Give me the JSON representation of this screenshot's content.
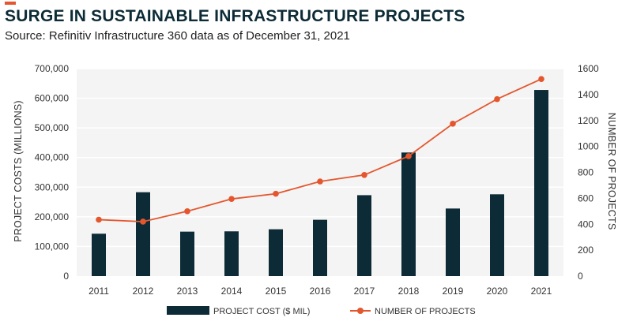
{
  "header": {
    "title": "SURGE IN SUSTAINABLE INFRASTRUCTURE PROJECTS",
    "subtitle": "Source: Refinitiv Infrastructure 360 data as of December 31, 2021"
  },
  "colors": {
    "accent": "#e4572e",
    "bar": "#0d2b36",
    "line": "#e4572e",
    "plot_background": "#f4f4f4",
    "gridline": "#ffffff"
  },
  "chart_data": {
    "type": "bar",
    "title": "SURGE IN SUSTAINABLE INFRASTRUCTURE PROJECTS",
    "categories": [
      "2011",
      "2012",
      "2013",
      "2014",
      "2015",
      "2016",
      "2017",
      "2018",
      "2019",
      "2020",
      "2021"
    ],
    "series": [
      {
        "name": "PROJECT COST ($ MIL)",
        "type": "bar",
        "axis": "left",
        "values": [
          143000,
          283000,
          150000,
          151000,
          158000,
          190000,
          273000,
          417000,
          228000,
          276000,
          628000
        ]
      },
      {
        "name": "NUMBER OF PROJECTS",
        "type": "line",
        "axis": "right",
        "values": [
          435,
          420,
          500,
          595,
          635,
          730,
          780,
          925,
          1175,
          1365,
          1520
        ]
      }
    ],
    "ylabel": "PROJECT COSTS (MILLIONS)",
    "ylabel_right": "NUMBER OF PROJECTS",
    "ylim": [
      0,
      700000
    ],
    "ylim_right": [
      0,
      1600
    ],
    "y_ticks": [
      "0",
      "100,000",
      "200,000",
      "300,000",
      "400,000",
      "500,000",
      "600,000",
      "700,000"
    ],
    "y_ticks_right": [
      "0",
      "200",
      "400",
      "600",
      "800",
      "1000",
      "1200",
      "1400",
      "1600"
    ],
    "grid": true,
    "legend": {
      "position": "bottom",
      "items": [
        "PROJECT COST ($ MIL)",
        "NUMBER OF PROJECTS"
      ]
    }
  }
}
